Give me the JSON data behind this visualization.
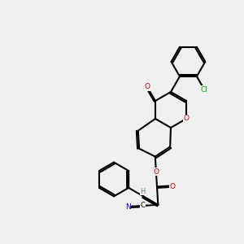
{
  "background_color": "#f0f0f0",
  "bond_color": "#000000",
  "bond_width": 1.5,
  "atom_colors": {
    "O": "#cc0000",
    "N": "#0000cc",
    "Cl": "#00aa00",
    "C": "#000000",
    "H": "#4a8a8a"
  },
  "font_size": 7.5
}
